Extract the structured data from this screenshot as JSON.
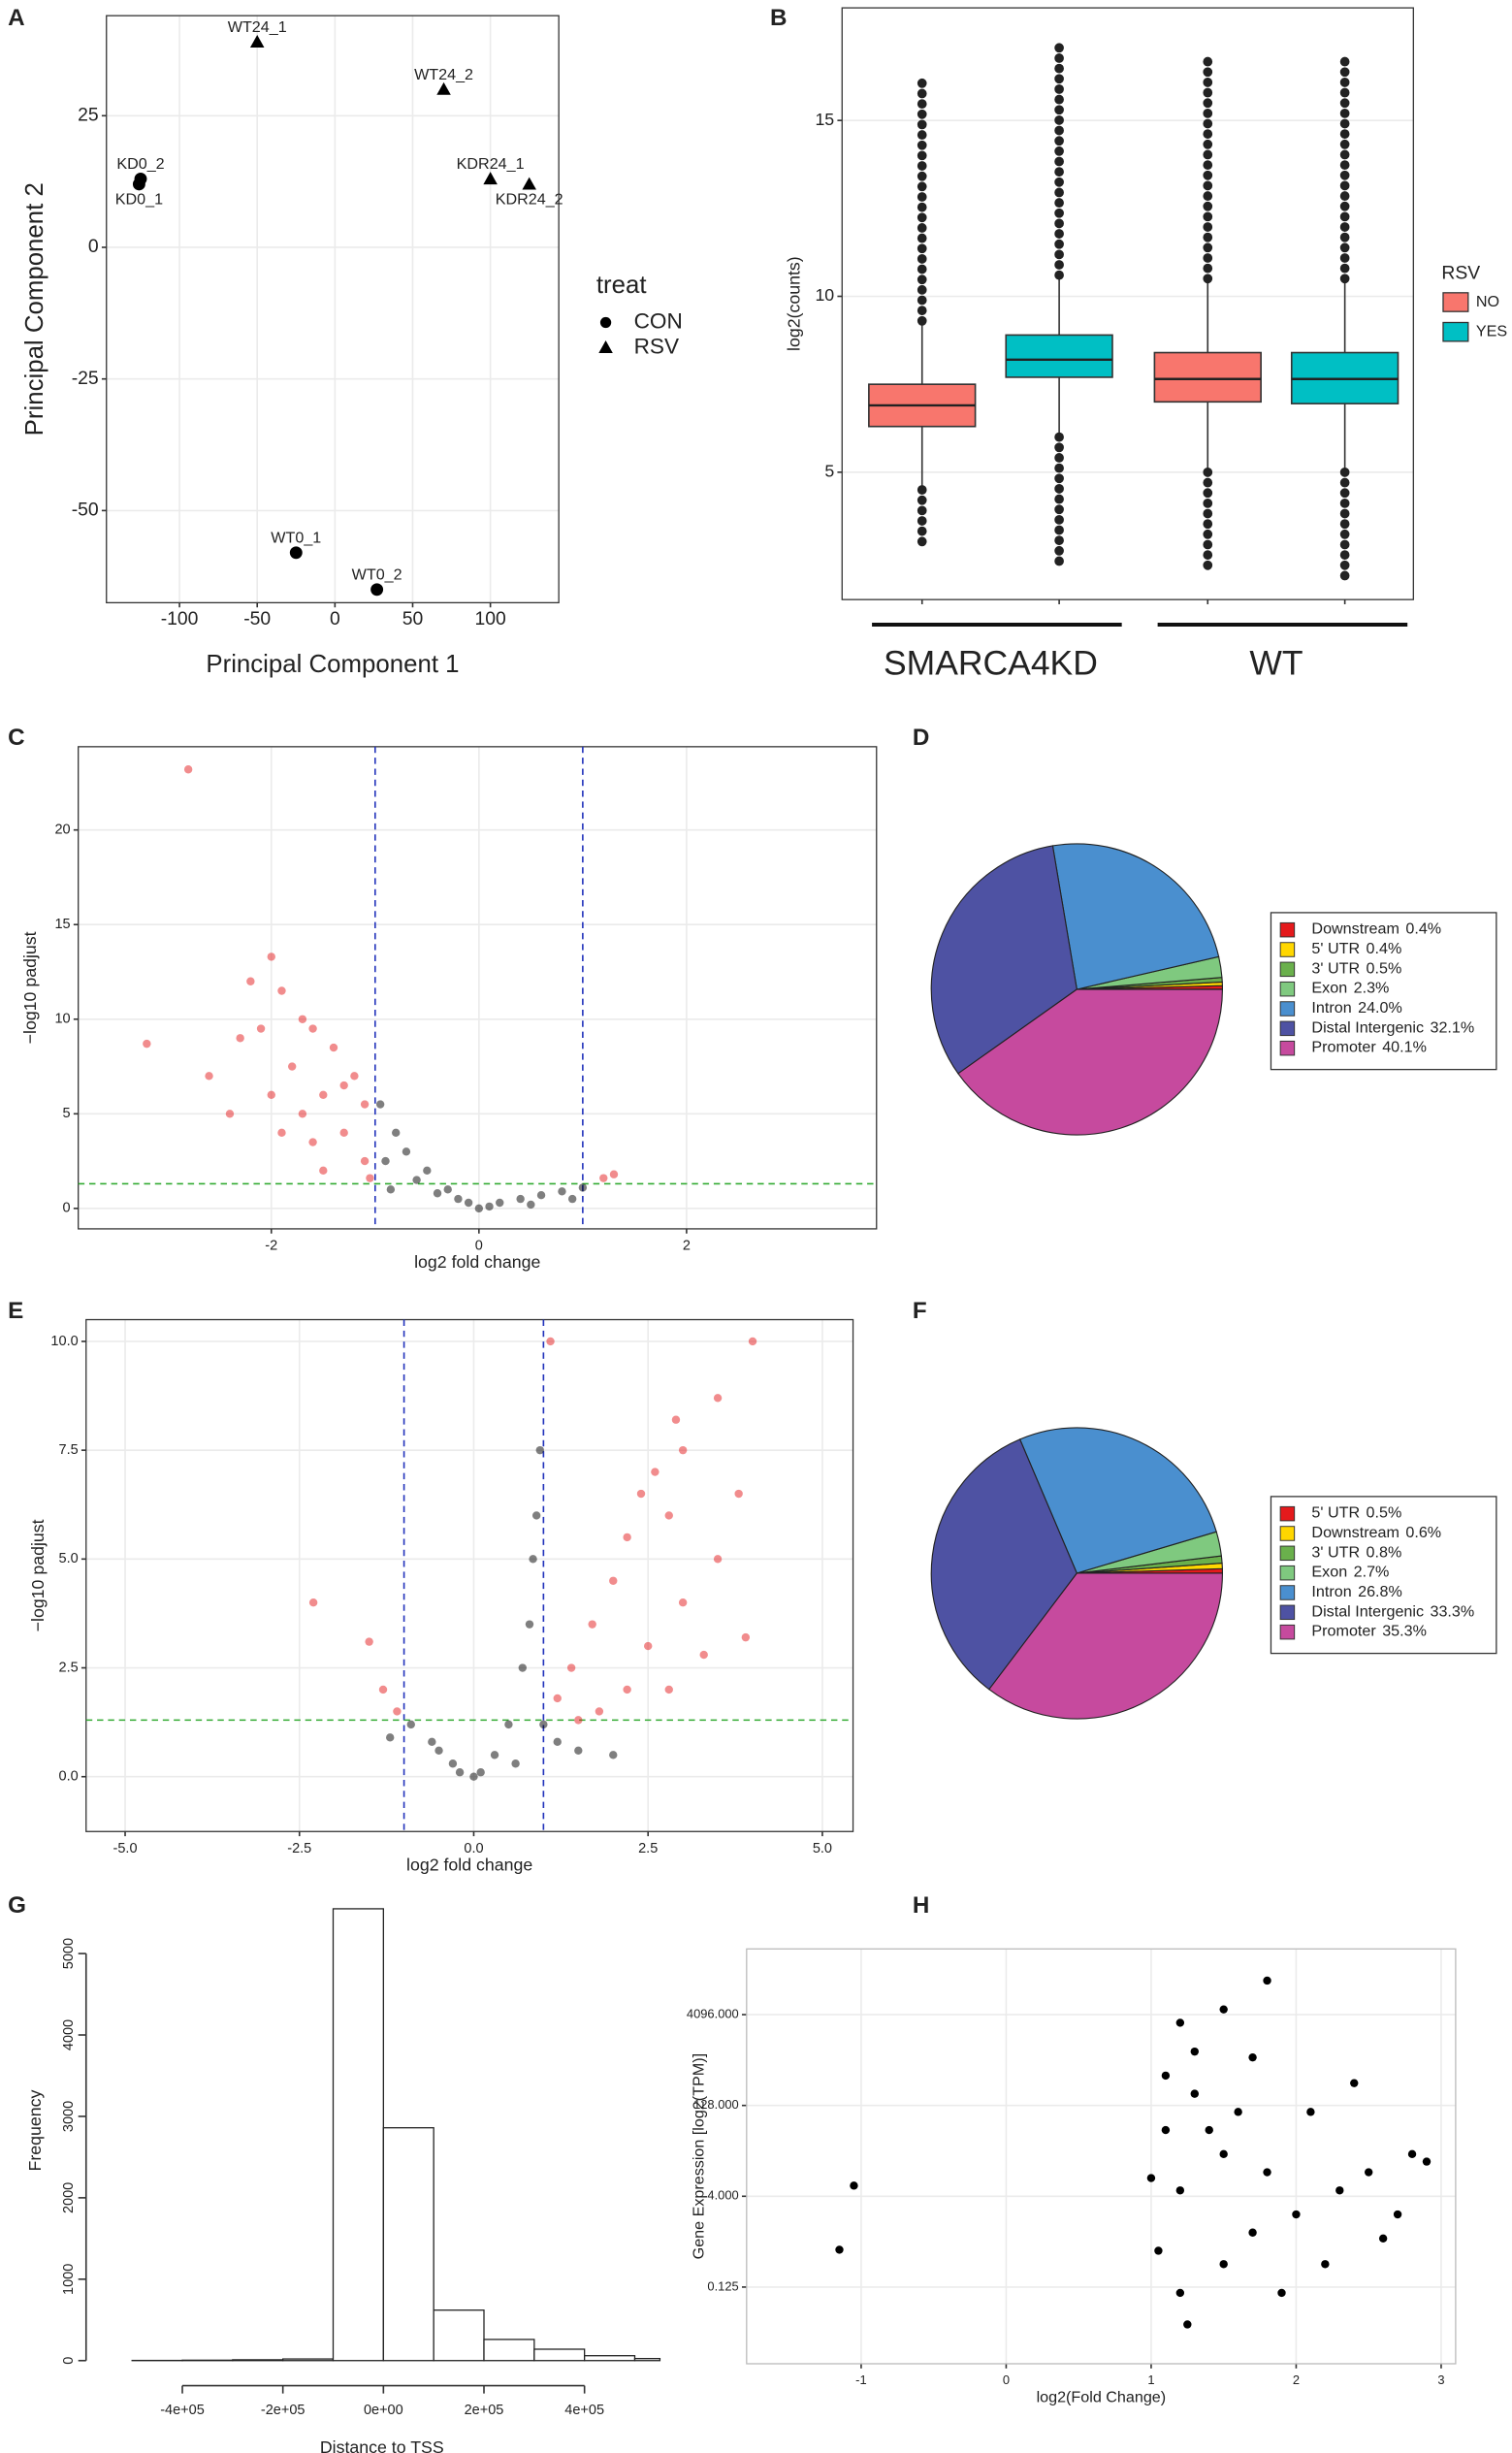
{
  "chart_data": [
    {
      "type": "scatter",
      "label": "A",
      "xlabel": "Principal Component 1",
      "ylabel": "Principal Component 2",
      "xlim": [
        -147,
        144
      ],
      "ylim": [
        -67.5,
        44
      ],
      "xticks": [
        -100,
        -50,
        0,
        50,
        100
      ],
      "yticks": [
        -50,
        -25,
        0,
        25
      ],
      "grid": true,
      "legend_title": "treat",
      "series": [
        {
          "name": "CON",
          "marker": "circle",
          "color": "#000000",
          "x": [
            -125,
            -126,
            -25,
            27
          ],
          "values": [
            13,
            12,
            -58,
            -65
          ],
          "labels": [
            "KD0_2",
            "KD0_1",
            "WT0_1",
            "WT0_2"
          ]
        },
        {
          "name": "RSV",
          "marker": "triangle",
          "color": "#000000",
          "x": [
            -50,
            70,
            100,
            125
          ],
          "values": [
            39,
            30,
            13,
            12
          ],
          "labels": [
            "WT24_1",
            "WT24_2",
            "KDR24_1",
            "KDR24_2"
          ]
        }
      ]
    },
    {
      "type": "box",
      "label": "B",
      "ylabel": "log2(counts)",
      "ylim": [
        1.38,
        18.2
      ],
      "yticks": [
        5,
        10,
        15
      ],
      "grid": true,
      "legend_title": "RSV",
      "series": [
        {
          "name": "NO",
          "color": "#F8766D"
        },
        {
          "name": "YES",
          "color": "#00BFC4"
        }
      ],
      "groups": [
        {
          "name": "SMARCA4KD",
          "boxes": [
            {
              "q1": 6.3,
              "median": 6.9,
              "q3": 7.5,
              "whisker_low": 4.5,
              "whisker_high": 9.3,
              "outlier_min": 2.9,
              "outlier_max": 16.3
            },
            {
              "q1": 7.7,
              "median": 8.2,
              "q3": 8.9,
              "whisker_low": 6.0,
              "whisker_high": 10.6,
              "outlier_min": 2.4,
              "outlier_max": 17.3
            }
          ]
        },
        {
          "name": "WT",
          "boxes": [
            {
              "q1": 7.0,
              "median": 7.65,
              "q3": 8.4,
              "whisker_low": 5.0,
              "whisker_high": 10.5,
              "outlier_min": 2.1,
              "outlier_max": 16.7
            },
            {
              "q1": 6.95,
              "median": 7.65,
              "q3": 8.4,
              "whisker_low": 5.0,
              "whisker_high": 10.5,
              "outlier_min": 1.9,
              "outlier_max": 16.7
            }
          ]
        }
      ]
    },
    {
      "type": "scatter",
      "label": "C",
      "xlabel": "log2 fold change",
      "ylabel": "−log10 padjust",
      "xlim": [
        -3.86,
        3.83
      ],
      "ylim": [
        -1.08,
        24.4
      ],
      "xticks": [
        -2,
        0,
        2
      ],
      "yticks": [
        0,
        5,
        10,
        15,
        20
      ],
      "grid": true,
      "vlines": [
        -1,
        1
      ],
      "hline": 1.3,
      "series": [
        {
          "marker": "circle",
          "color": "#e41a1c",
          "opacity": 0.5,
          "x": [
            -2.8,
            -3.2,
            -2.6,
            -2.3,
            -2,
            -2.2,
            -1.9,
            -1.7,
            -1.6,
            -1.4,
            -1.2,
            -1.1,
            -1.5,
            -1.8,
            -2.0,
            -2.4,
            -1.3,
            -1.6,
            -1.1,
            -1.9,
            -1.5,
            -1.05,
            1.2,
            1.3,
            -1.7,
            -1.3,
            -2.1
          ],
          "values": [
            23.2,
            8.7,
            7,
            9,
            13.3,
            12,
            11.5,
            10,
            9.5,
            8.5,
            7,
            5.5,
            6,
            7.5,
            6,
            5,
            4,
            3.5,
            2.5,
            4,
            2,
            1.6,
            1.6,
            1.8,
            5,
            6.5,
            9.5
          ]
        },
        {
          "marker": "circle",
          "color": "#000000",
          "opacity": 0.5,
          "x": [
            -0.95,
            -0.8,
            -0.7,
            -0.5,
            -0.3,
            -0.1,
            0,
            0.2,
            0.4,
            0.6,
            0.8,
            1,
            -0.9,
            -0.6,
            -0.2,
            0.1,
            -0.4,
            0.9,
            0.5,
            -0.85
          ],
          "values": [
            5.5,
            4,
            3,
            2,
            1,
            0.3,
            0,
            0.3,
            0.5,
            0.7,
            0.9,
            1.1,
            2.5,
            1.5,
            0.5,
            0.1,
            0.8,
            0.5,
            0.2,
            1
          ]
        }
      ]
    },
    {
      "type": "pie",
      "label": "D",
      "categories": [
        "Downstream",
        "5' UTR",
        "3' UTR",
        "Exon",
        "Intron",
        "Distal Intergenic",
        "Promoter"
      ],
      "values": [
        0.4,
        0.4,
        0.5,
        2.3,
        24.0,
        32.1,
        40.1
      ],
      "value_labels": [
        "0.4%",
        "0.4%",
        "0.5%",
        "2.3%",
        "24.0%",
        "32.1%",
        "40.1%"
      ],
      "colors": [
        "#e41a1c",
        "#ffd700",
        "#6ab04c",
        "#7fc97f",
        "#4a8fcf",
        "#4e52a3",
        "#c64a9e"
      ]
    },
    {
      "type": "scatter",
      "label": "E",
      "xlabel": "log2 fold change",
      "ylabel": "−log10 padjust",
      "xlim": [
        -5.56,
        5.44
      ],
      "ylim": [
        -1.26,
        10.5
      ],
      "xticks": [
        {
          "value": -5,
          "label": "-5.0"
        },
        {
          "value": -2.5,
          "label": "-2.5"
        },
        {
          "value": 0,
          "label": "0.0"
        },
        2.5,
        {
          "value": 5,
          "label": "5.0"
        }
      ],
      "yticks": [
        {
          "value": 0,
          "label": "0.0"
        },
        2.5,
        {
          "value": 5,
          "label": "5.0"
        },
        7.5,
        {
          "value": 10,
          "label": "10.0"
        }
      ],
      "grid": true,
      "vlines": [
        -1,
        1
      ],
      "hline": 1.3,
      "series": [
        {
          "marker": "circle",
          "color": "#e41a1c",
          "opacity": 0.5,
          "x": [
            4,
            1.1,
            3.5,
            3,
            2.6,
            2.8,
            2.2,
            2,
            1.7,
            1.4,
            1.2,
            2.5,
            3,
            3.5,
            3.8,
            2.2,
            1.8,
            2.8,
            3.3,
            -2.3,
            -1.5,
            -1.3,
            -1.1,
            2.4,
            2.9,
            1.5,
            3.9
          ],
          "values": [
            10,
            10,
            8.7,
            7.5,
            7,
            6,
            5.5,
            4.5,
            3.5,
            2.5,
            1.8,
            3,
            4,
            5,
            6.5,
            2,
            1.5,
            2,
            2.8,
            4,
            3.1,
            2,
            1.5,
            6.5,
            8.2,
            1.3,
            3.2
          ]
        },
        {
          "marker": "circle",
          "color": "#000000",
          "opacity": 0.5,
          "x": [
            0.95,
            0.9,
            0.85,
            0.8,
            0.7,
            0.5,
            0.3,
            0,
            -0.3,
            -0.6,
            -0.9,
            1.2,
            1.5,
            2,
            0.1,
            -0.2,
            0.6,
            -0.5,
            1.0,
            -1.2
          ],
          "values": [
            7.5,
            6,
            5,
            3.5,
            2.5,
            1.2,
            0.5,
            0,
            0.3,
            0.8,
            1.2,
            0.8,
            0.6,
            0.5,
            0.1,
            0.1,
            0.3,
            0.6,
            1.2,
            0.9
          ]
        }
      ]
    },
    {
      "type": "pie",
      "label": "F",
      "categories": [
        "5' UTR",
        "Downstream",
        "3' UTR",
        "Exon",
        "Intron",
        "Distal Intergenic",
        "Promoter"
      ],
      "values": [
        0.5,
        0.6,
        0.8,
        2.7,
        26.8,
        33.3,
        35.3
      ],
      "value_labels": [
        "0.5%",
        "0.6%",
        "0.8%",
        "2.7%",
        "26.8%",
        "33.3%",
        "35.3%"
      ],
      "colors": [
        "#e41a1c",
        "#ffd700",
        "#6ab04c",
        "#7fc97f",
        "#4a8fcf",
        "#4e52a3",
        "#c64a9e"
      ]
    },
    {
      "type": "histogram",
      "label": "G",
      "xlabel": "Distance to TSS",
      "ylabel": "Frequency",
      "bins": [
        -500000,
        -400000,
        -300000,
        -200000,
        -100000,
        0,
        100000,
        200000,
        300000,
        400000,
        500000,
        550000
      ],
      "values": [
        2,
        5,
        10,
        20,
        5550,
        2860,
        620,
        260,
        140,
        60,
        25
      ],
      "xlim": [
        -551000,
        545000
      ],
      "ylim": [
        -77,
        5730
      ],
      "xticks": [
        {
          "value": -400000,
          "label": "-4e+05"
        },
        {
          "value": -200000,
          "label": "-2e+05"
        },
        {
          "value": 0,
          "label": "0e+00"
        },
        {
          "value": 200000,
          "label": "2e+05"
        },
        {
          "value": 400000,
          "label": "4e+05"
        }
      ],
      "yticks": [
        0,
        1000,
        2000,
        3000,
        4000,
        5000
      ],
      "grid": false
    },
    {
      "type": "scatter",
      "label": "H",
      "xlabel": "log2(Fold Change)",
      "ylabel": "Gene Expression [log2(TPM)]",
      "xlim": [
        -1.79,
        3.1
      ],
      "ylim": [
        0.0067,
        50300
      ],
      "ylog": 2,
      "xticks": [
        -1,
        0,
        1,
        2,
        3
      ],
      "yticks": [
        0.125,
        {
          "value": 4,
          "label": "4.000"
        },
        {
          "value": 128,
          "label": "128.000"
        },
        {
          "value": 4096,
          "label": "4096.000"
        }
      ],
      "grid": true,
      "series": [
        {
          "marker": "circle",
          "color": "#000000",
          "opacity": 1,
          "x": [
            -1.05,
            -1.15,
            1.2,
            1.5,
            1.8,
            1.3,
            1.1,
            1.0,
            1.05,
            1.2,
            1.25,
            1.5,
            1.7,
            2.0,
            2.3,
            2.5,
            2.8,
            2.9,
            2.6,
            2.2,
            1.9,
            1.4,
            1.6,
            2.1,
            2.4,
            1.3,
            1.7,
            1.1,
            2.7,
            1.5,
            1.8,
            1.2
          ],
          "values": [
            6,
            0.52,
            3000,
            5000,
            15000,
            200,
            50,
            8,
            0.5,
            0.1,
            0.03,
            0.3,
            1,
            2,
            5,
            10,
            20,
            15,
            0.8,
            0.3,
            0.1,
            50,
            100,
            100,
            300,
            1000,
            800,
            400,
            2,
            20,
            10,
            5
          ]
        }
      ]
    }
  ]
}
